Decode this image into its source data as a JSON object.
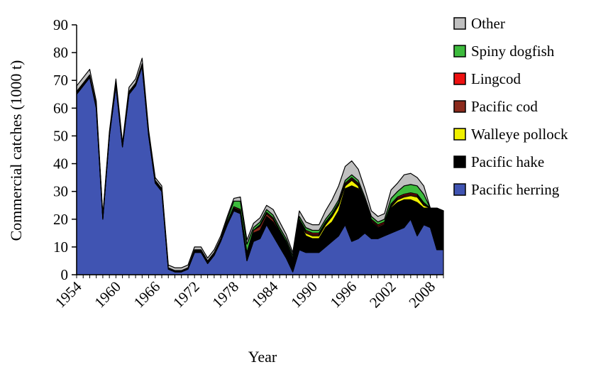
{
  "chart_data": {
    "type": "area",
    "stacked": true,
    "title": "",
    "xlabel": "Year",
    "ylabel": "Commercial catches (1000 t)",
    "ylim": [
      0,
      90
    ],
    "yticks": [
      0,
      10,
      20,
      30,
      40,
      50,
      60,
      70,
      80,
      90
    ],
    "xlim": [
      1954,
      2010
    ],
    "xticks": [
      "1954",
      "1960",
      "1966",
      "1972",
      "1978",
      "1984",
      "1990",
      "1996",
      "2002",
      "2008"
    ],
    "grid": false,
    "legend_position": "right",
    "years": [
      1954,
      1955,
      1956,
      1957,
      1958,
      1959,
      1960,
      1961,
      1962,
      1963,
      1964,
      1965,
      1966,
      1967,
      1968,
      1969,
      1970,
      1971,
      1972,
      1973,
      1974,
      1975,
      1976,
      1977,
      1978,
      1979,
      1980,
      1981,
      1982,
      1983,
      1984,
      1985,
      1986,
      1987,
      1988,
      1989,
      1990,
      1991,
      1992,
      1993,
      1994,
      1995,
      1996,
      1997,
      1998,
      1999,
      2000,
      2001,
      2002,
      2003,
      2004,
      2005,
      2006,
      2007,
      2008,
      2009,
      2010
    ],
    "series": [
      {
        "name": "Pacific herring",
        "color": "#4054b2",
        "values": [
          65,
          68,
          71,
          60,
          20,
          50,
          68,
          46,
          65,
          68,
          75,
          50,
          33,
          30,
          2,
          1,
          1,
          2,
          8,
          8,
          4,
          7,
          12,
          18,
          23,
          22,
          5,
          12,
          13,
          18,
          14,
          10,
          6,
          1,
          9,
          8,
          8,
          8,
          10,
          12,
          14,
          18,
          12,
          13,
          15,
          13,
          13,
          14,
          15,
          16,
          17,
          20,
          14,
          18,
          17,
          9,
          9
        ]
      },
      {
        "name": "Pacific hake",
        "color": "#000000",
        "values": [
          1,
          1,
          1,
          1,
          0.5,
          0.5,
          1,
          0.5,
          1,
          1,
          1,
          1,
          1,
          1,
          0.5,
          0.5,
          0.5,
          0.5,
          1,
          1,
          1,
          1,
          1,
          1,
          1,
          1,
          2,
          3,
          3,
          3,
          5,
          5,
          5,
          4,
          10,
          6,
          5,
          5,
          7,
          7,
          9,
          13,
          20,
          18,
          11,
          6,
          4,
          4,
          9,
          10,
          10,
          7,
          12,
          6,
          7,
          15,
          14
        ]
      },
      {
        "name": "Walleye pollock",
        "color": "#f0f000",
        "values": [
          0,
          0,
          0,
          0,
          0,
          0,
          0,
          0,
          0,
          0,
          0,
          0,
          0,
          0,
          0,
          0,
          0,
          0,
          0,
          0,
          0,
          0,
          0,
          0,
          0,
          0,
          0,
          0,
          0,
          0,
          0,
          0,
          0,
          0,
          0,
          1,
          1,
          1,
          1,
          2,
          2,
          1,
          2,
          1,
          0,
          0,
          0,
          0,
          0.5,
          1,
          1,
          1.5,
          2,
          1,
          0,
          0,
          0
        ]
      },
      {
        "name": "Pacific cod",
        "color": "#8b2a1c",
        "values": [
          0,
          0,
          0,
          0,
          0,
          0,
          0,
          0,
          0,
          0,
          0,
          0,
          0,
          0,
          0,
          0,
          0,
          0,
          0,
          0,
          0,
          0,
          0,
          0,
          0.5,
          0.5,
          1,
          1,
          1.5,
          1,
          1,
          0.5,
          0.5,
          0.5,
          0.5,
          0.5,
          0.5,
          0.5,
          0.5,
          0.5,
          0.5,
          0.5,
          0.5,
          0.5,
          0.5,
          0.5,
          0.5,
          0.5,
          0.5,
          0.5,
          0.5,
          0.5,
          0.5,
          0.5,
          0,
          0,
          0
        ]
      },
      {
        "name": "Lingcod",
        "color": "#ee1111",
        "values": [
          0,
          0,
          0,
          0,
          0,
          0,
          0,
          0,
          0,
          0,
          0,
          0,
          0,
          0,
          0,
          0,
          0,
          0,
          0,
          0,
          0,
          0,
          0,
          0,
          0,
          0,
          0,
          0,
          0.5,
          0.5,
          0.5,
          0.5,
          0.5,
          0.5,
          0.5,
          0.5,
          0.5,
          0.5,
          0.5,
          0.5,
          0.5,
          0.5,
          0.5,
          0.5,
          0.5,
          0.5,
          0.5,
          0.5,
          0.5,
          0.5,
          0.5,
          0.5,
          0.5,
          0.5,
          0,
          0,
          0
        ]
      },
      {
        "name": "Spiny dogfish",
        "color": "#3dbb3d",
        "values": [
          0,
          0,
          0,
          0,
          0,
          0,
          0,
          0,
          0,
          0,
          0,
          0,
          0,
          0,
          0,
          0,
          0,
          0,
          0,
          0,
          0,
          0,
          0,
          1,
          2,
          3,
          3,
          1,
          1,
          1,
          1,
          1,
          1,
          1,
          1,
          1,
          1,
          1,
          1,
          1,
          1,
          1,
          1,
          1,
          1,
          1,
          1,
          1,
          2,
          2,
          3,
          3,
          3,
          3,
          0,
          0,
          0
        ]
      },
      {
        "name": "Other",
        "color": "#c0c0c0",
        "values": [
          2,
          2,
          2,
          1.5,
          1,
          1,
          1.5,
          1,
          1.5,
          1.5,
          2,
          1,
          1,
          1,
          1,
          1,
          1,
          1,
          1,
          1,
          1,
          1,
          1,
          1,
          1,
          1.5,
          1.5,
          1.5,
          1.5,
          1.5,
          2,
          2,
          1.5,
          1,
          2,
          2,
          2,
          2,
          3,
          4,
          5,
          5,
          5,
          4,
          3,
          2,
          2,
          2,
          3,
          3,
          4,
          4,
          3,
          3,
          0,
          0,
          0
        ]
      }
    ]
  }
}
